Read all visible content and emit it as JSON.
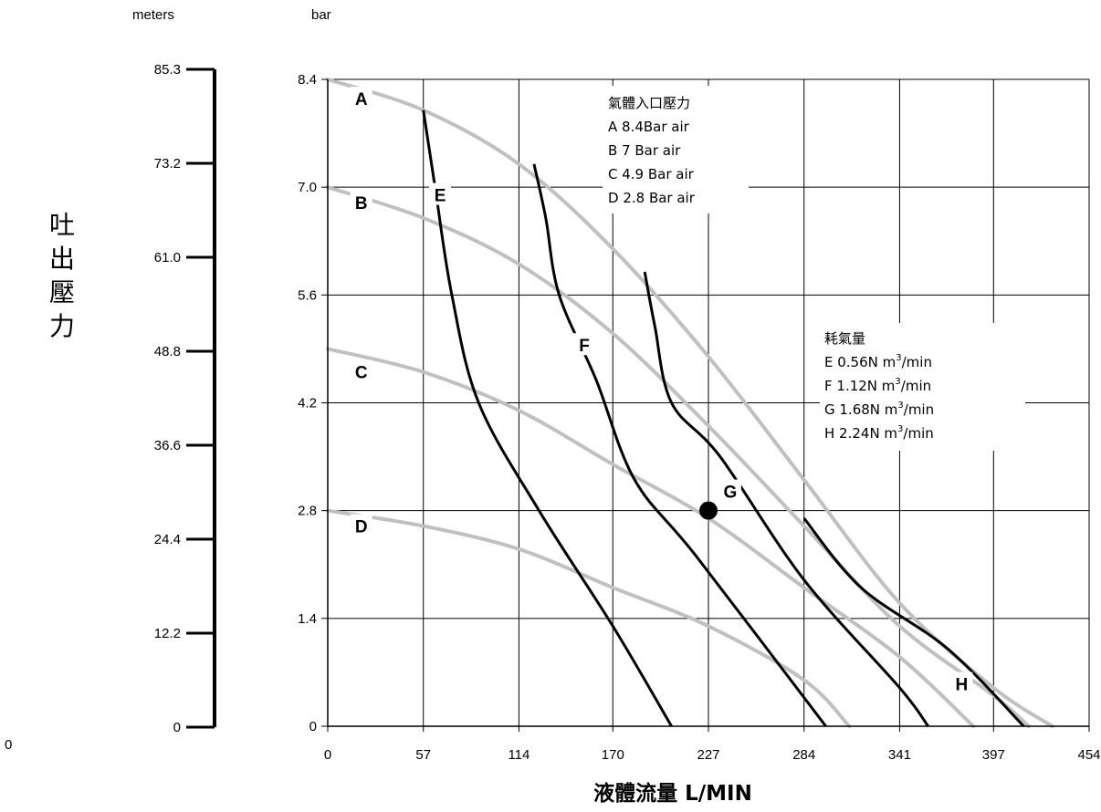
{
  "chart_data": {
    "type": "line",
    "units": {
      "left": "meters",
      "right": "bar"
    },
    "meters_ticks": [
      "85.3",
      "73.2",
      "61.0",
      "48.8",
      "36.6",
      "24.4",
      "12.2",
      "0"
    ],
    "meters_bottom_label": "0",
    "y_title_chars": [
      "吐",
      "出",
      "壓",
      "力"
    ],
    "x_title": "液體流量 L/MIN",
    "x_ticks": [
      "0",
      "57",
      "114",
      "170",
      "227",
      "284",
      "341",
      "397",
      "454"
    ],
    "y_ticks": [
      "0",
      "1.4",
      "2.8",
      "4.2",
      "5.6",
      "7.0",
      "8.4"
    ],
    "xlim": [
      0,
      454
    ],
    "ylim": [
      0,
      8.4
    ],
    "grid": true,
    "legend_air_pressure": {
      "title": "氣體入口壓力",
      "items": [
        "A  8.4Bar air",
        "B  7 Bar air",
        "C  4.9 Bar air",
        "D  2.8 Bar air"
      ]
    },
    "legend_air_consumption": {
      "title": "耗氣量",
      "items": [
        {
          "label": "E  0.56N m",
          "sup": "3",
          "unit": "/min"
        },
        {
          "label": "F  1.12N m",
          "sup": "3",
          "unit": "/min"
        },
        {
          "label": "G  1.68N m",
          "sup": "3",
          "unit": "/min"
        },
        {
          "label": "H  2.24N m",
          "sup": "3",
          "unit": "/min"
        }
      ]
    },
    "pressure_curves": [
      {
        "name": "A",
        "color": "#c0c0c0",
        "points": [
          [
            0,
            8.4
          ],
          [
            57,
            8.0
          ],
          [
            114,
            7.3
          ],
          [
            170,
            6.2
          ],
          [
            227,
            4.8
          ],
          [
            284,
            3.2
          ],
          [
            341,
            1.6
          ],
          [
            397,
            0.5
          ],
          [
            432,
            0
          ]
        ]
      },
      {
        "name": "B",
        "color": "#c0c0c0",
        "points": [
          [
            0,
            7.0
          ],
          [
            57,
            6.6
          ],
          [
            114,
            6.0
          ],
          [
            170,
            5.1
          ],
          [
            227,
            3.9
          ],
          [
            284,
            2.6
          ],
          [
            341,
            1.3
          ],
          [
            397,
            0.4
          ],
          [
            418,
            0
          ]
        ]
      },
      {
        "name": "C",
        "color": "#c0c0c0",
        "points": [
          [
            0,
            4.9
          ],
          [
            57,
            4.6
          ],
          [
            114,
            4.1
          ],
          [
            170,
            3.4
          ],
          [
            227,
            2.7
          ],
          [
            284,
            1.8
          ],
          [
            341,
            0.9
          ],
          [
            385,
            0
          ]
        ]
      },
      {
        "name": "D",
        "color": "#c0c0c0",
        "points": [
          [
            0,
            2.8
          ],
          [
            57,
            2.6
          ],
          [
            114,
            2.3
          ],
          [
            170,
            1.8
          ],
          [
            227,
            1.3
          ],
          [
            284,
            0.6
          ],
          [
            311,
            0
          ]
        ]
      }
    ],
    "consumption_curves": [
      {
        "name": "E",
        "color": "#000000",
        "points": [
          [
            57,
            8.0
          ],
          [
            64,
            7.0
          ],
          [
            74,
            5.6
          ],
          [
            90,
            4.2
          ],
          [
            126,
            2.8
          ],
          [
            170,
            1.3
          ],
          [
            205,
            0
          ]
        ]
      },
      {
        "name": "F",
        "color": "#000000",
        "points": [
          [
            123,
            7.3
          ],
          [
            130,
            6.6
          ],
          [
            138,
            5.6
          ],
          [
            160,
            4.5
          ],
          [
            183,
            3.2
          ],
          [
            220,
            2.2
          ],
          [
            297,
            0
          ]
        ]
      },
      {
        "name": "G",
        "color": "#000000",
        "points": [
          [
            189,
            5.9
          ],
          [
            195,
            5.2
          ],
          [
            205,
            4.2
          ],
          [
            234,
            3.5
          ],
          [
            284,
            1.9
          ],
          [
            341,
            0.5
          ],
          [
            358,
            0
          ]
        ]
      },
      {
        "name": "H",
        "color": "#000000",
        "points": [
          [
            284,
            2.7
          ],
          [
            318,
            1.8
          ],
          [
            370,
            1.0
          ],
          [
            415,
            0
          ]
        ]
      }
    ],
    "curve_labels": [
      {
        "text": "A",
        "x": 20,
        "y": 8.15
      },
      {
        "text": "B",
        "x": 20,
        "y": 6.8
      },
      {
        "text": "C",
        "x": 20,
        "y": 4.6
      },
      {
        "text": "D",
        "x": 20,
        "y": 2.6
      },
      {
        "text": "E",
        "x": 67,
        "y": 6.9
      },
      {
        "text": "F",
        "x": 153,
        "y": 4.95
      },
      {
        "text": "G",
        "x": 240,
        "y": 3.05
      },
      {
        "text": "H",
        "x": 378,
        "y": 0.55
      }
    ],
    "operating_point": {
      "x": 227,
      "y": 2.8
    }
  }
}
